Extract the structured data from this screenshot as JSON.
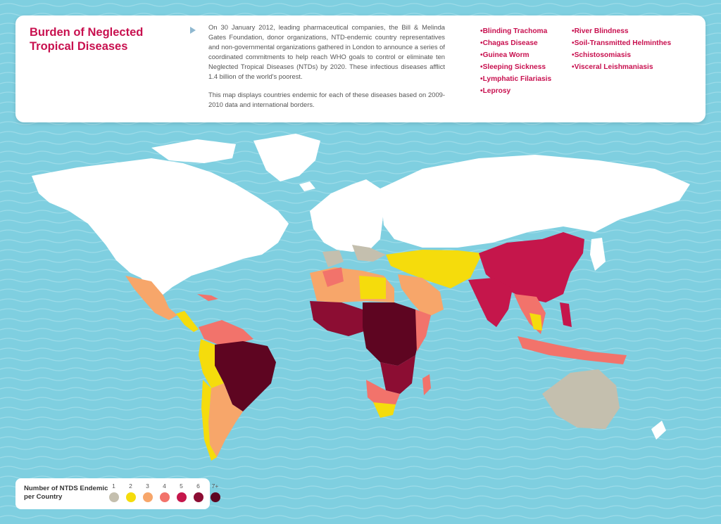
{
  "header": {
    "title": "Burden of Neglected Tropical Diseases",
    "description_1": "On 30 January 2012, leading pharmaceutical companies, the Bill & Melinda Gates Foundation, donor organizations, NTD-endemic country representatives and non-governmental organizations gathered in London to announce a series of coordinated commitments to help reach WHO goals to control or eliminate ten Neglected Tropical Diseases (NTDs) by 2020. These infectious diseases afflict 1.4 billion of the world's poorest.",
    "description_2": "This map displays countries endemic for each of these diseases based on 2009-2010 data and international borders."
  },
  "diseases_col1": [
    "Blinding Trachoma",
    "Chagas Disease",
    "Guinea Worm",
    "Sleeping Sickness",
    "Lymphatic Filariasis",
    "Leprosy"
  ],
  "diseases_col2": [
    "River Blindness",
    "Soil-Transmitted Helminthes",
    "Schistosomiasis",
    "Visceral Leishmaniasis"
  ],
  "legend": {
    "title": "Number of NTDS Endemic per Country",
    "items": [
      {
        "label": "1",
        "color": "#c4bfae"
      },
      {
        "label": "2",
        "color": "#f5dc0c"
      },
      {
        "label": "3",
        "color": "#f7a66a"
      },
      {
        "label": "4",
        "color": "#f2736b"
      },
      {
        "label": "5",
        "color": "#c5164b"
      },
      {
        "label": "6",
        "color": "#8c0d33"
      },
      {
        "label": "7+",
        "color": "#5e0521"
      }
    ]
  },
  "colors": {
    "ocean": "#7fcfe0",
    "land_non_endemic": "#ffffff",
    "accent": "#c8104f"
  }
}
